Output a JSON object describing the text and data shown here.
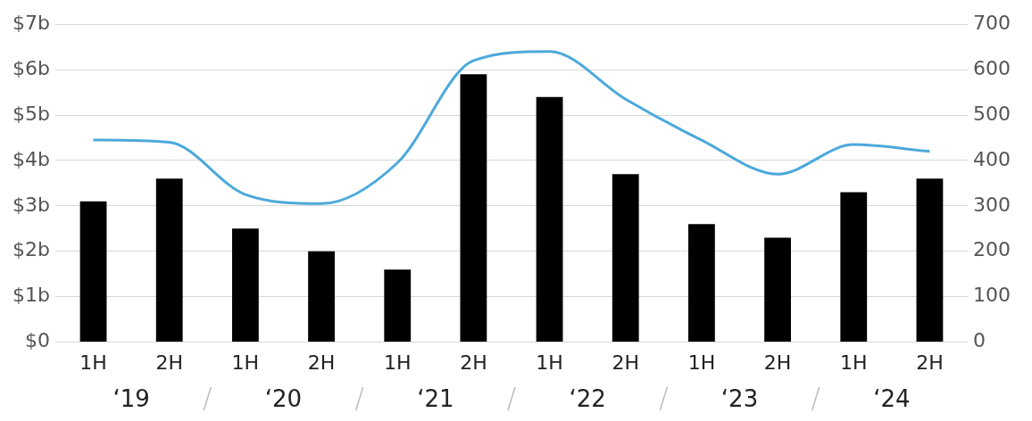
{
  "chart_data": {
    "type": "bar",
    "categories": [
      "1H",
      "2H",
      "1H",
      "2H",
      "1H",
      "2H",
      "1H",
      "2H",
      "1H",
      "2H",
      "1H",
      "2H"
    ],
    "series": [
      {
        "color": "#000000",
        "values": [
          3.1,
          3.6,
          2.5,
          2.0,
          1.6,
          5.9,
          5.4,
          3.7,
          2.6,
          2.3,
          3.3,
          3.6
        ]
      },
      {
        "type": "line",
        "axis": "y2",
        "color": "#4ba9db",
        "values": [
          445,
          440,
          325,
          305,
          395,
          620,
          640,
          535,
          445,
          370,
          435,
          420
        ]
      }
    ],
    "ylim": [
      0,
      7
    ],
    "yticks": [
      {
        "value": 0,
        "label": "$0"
      },
      {
        "value": 1,
        "label": "$1b"
      },
      {
        "value": 2,
        "label": "$2b"
      },
      {
        "value": 3,
        "label": "$3b"
      },
      {
        "value": 4,
        "label": "$4b"
      },
      {
        "value": 5,
        "label": "$5b"
      },
      {
        "value": 6,
        "label": "$6b"
      },
      {
        "value": 7,
        "label": "$7b"
      }
    ],
    "y2lim": [
      0,
      700
    ],
    "y2ticks": [
      0,
      100,
      200,
      300,
      400,
      500,
      600,
      700
    ],
    "grid": "y",
    "legend": false,
    "marker": "none",
    "annotations": [
      "‘19",
      "‘20",
      "‘21",
      "‘22",
      "‘23",
      "‘24"
    ]
  }
}
